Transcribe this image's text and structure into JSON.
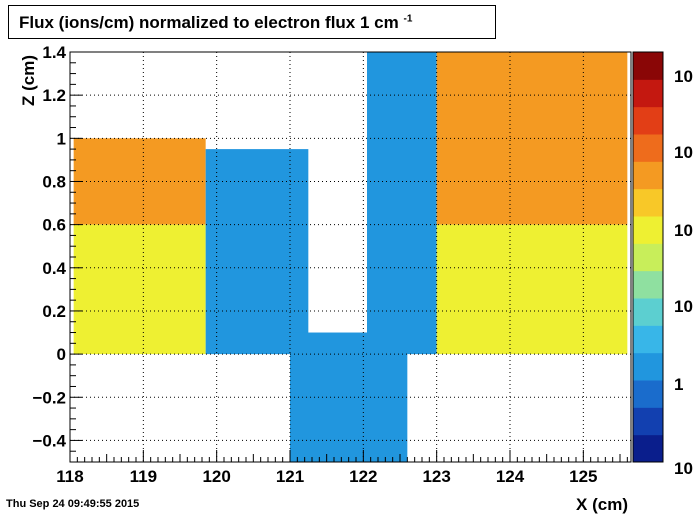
{
  "chart_data": {
    "type": "heatmap",
    "title": "Flux (ions/cm) normalized to electron flux 1 cm",
    "title_superscript": "-1",
    "xlabel": "X (cm)",
    "ylabel": "Z (cm)",
    "xlim": [
      118,
      125.65
    ],
    "ylim": [
      -0.5,
      1.4
    ],
    "x_ticks": [
      "118",
      "119",
      "120",
      "121",
      "122",
      "123",
      "124",
      "125"
    ],
    "y_ticks": [
      "−0.4",
      "−0.2",
      "0",
      "0.2",
      "0.4",
      "0.6",
      "0.8",
      "1",
      "1.2",
      "1.4"
    ],
    "grid": true,
    "log_color_scale": true,
    "palette_labels": [
      "10",
      "1",
      "10",
      "10",
      "10",
      "10"
    ],
    "colormap": [
      "#0a1e8c",
      "#1240b0",
      "#1a6ccc",
      "#2196de",
      "#38b6e8",
      "#5ccfd0",
      "#8fe0a0",
      "#c8ee5a",
      "#eef032",
      "#f8c828",
      "#f49a22",
      "#ee6c1c",
      "#e23e16",
      "#c41810",
      "#8a0606"
    ],
    "regions": [
      {
        "x0": 118.05,
        "x1": 119.85,
        "z0": 0.6,
        "z1": 1.0,
        "level": "orange"
      },
      {
        "x0": 118.05,
        "x1": 119.85,
        "z0": 0.0,
        "z1": 0.6,
        "level": "yellow"
      },
      {
        "x0": 119.85,
        "x1": 121.25,
        "z0": 0.0,
        "z1": 0.95,
        "level": "blue"
      },
      {
        "x0": 121.0,
        "x1": 122.6,
        "z0": -0.5,
        "z1": 0.1,
        "level": "blue"
      },
      {
        "x0": 122.05,
        "x1": 123.0,
        "z0": 0.0,
        "z1": 1.4,
        "level": "blue"
      },
      {
        "x0": 123.0,
        "x1": 125.6,
        "z0": 0.6,
        "z1": 1.4,
        "level": "orange"
      },
      {
        "x0": 123.0,
        "x1": 125.6,
        "z0": 0.0,
        "z1": 0.6,
        "level": "yellow"
      }
    ]
  },
  "timestamp": "Thu Sep 24 09:49:55 2015"
}
